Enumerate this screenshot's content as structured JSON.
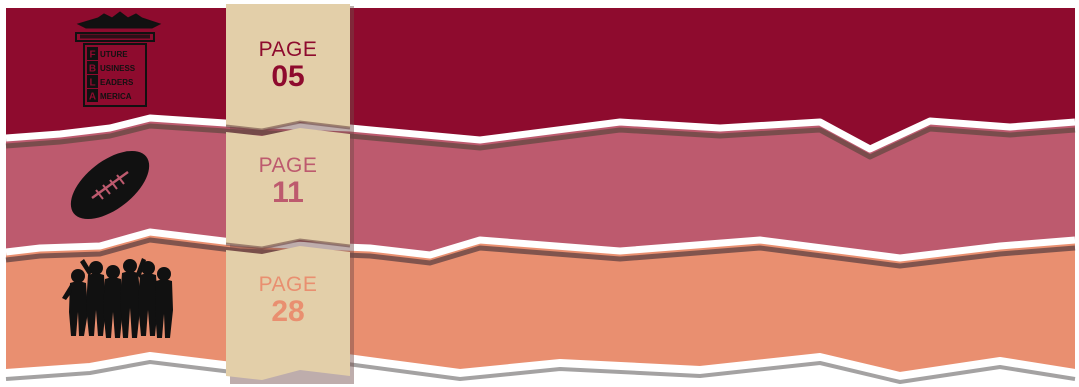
{
  "colors": {
    "background": "#ffffff",
    "band_1": "#8e0b2e",
    "band_2": "#bd5a6e",
    "band_3": "#e98f70",
    "ribbon": "#e3cfa9",
    "shadow": "#6e4a46",
    "icon": "#111111"
  },
  "sections": [
    {
      "page_word": "PAGE",
      "page_number": "05",
      "icon": "fbla-logo-icon"
    },
    {
      "page_word": "PAGE",
      "page_number": "11",
      "icon": "football-icon"
    },
    {
      "page_word": "PAGE",
      "page_number": "28",
      "icon": "people-silhouette-icon"
    }
  ],
  "logo": {
    "letters": [
      "F",
      "B",
      "L",
      "A"
    ],
    "words": [
      "UTURE",
      "USINESS",
      "EADERS",
      "MERICA"
    ]
  }
}
